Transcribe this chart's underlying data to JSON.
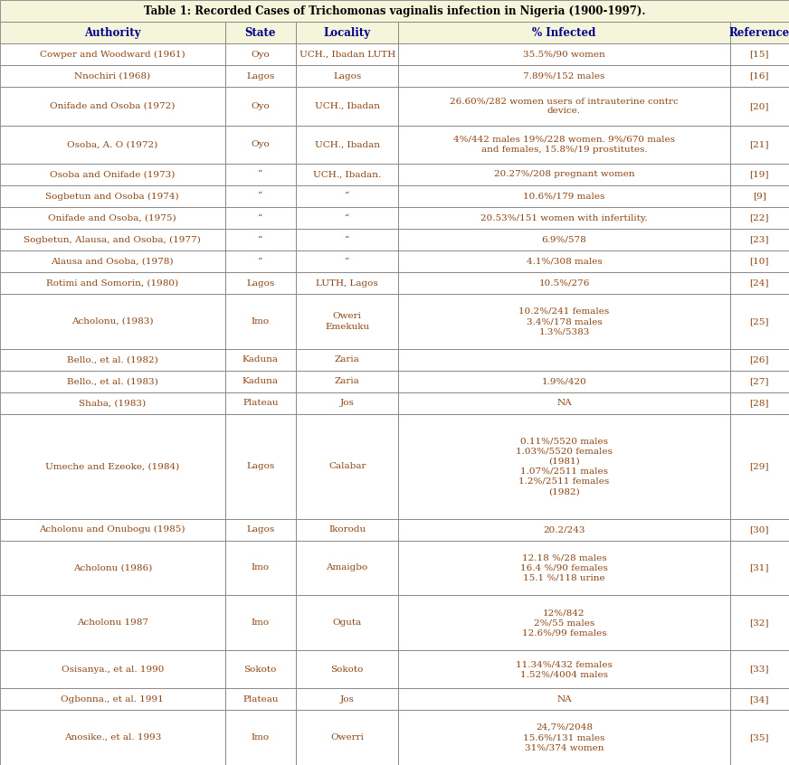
{
  "title": "Table 1: Recorded Cases of Trichomonas vaginalis infection in Nigeria (1900-1997).",
  "headers": [
    "Authority",
    "State",
    "Locality",
    "% Infected",
    "Reference"
  ],
  "col_starts": [
    0.0,
    0.285,
    0.375,
    0.505,
    0.925
  ],
  "col_ends": [
    0.285,
    0.375,
    0.505,
    0.925,
    1.0
  ],
  "header_bg": "#F5F5DC",
  "cell_bg": "#FFFFFF",
  "border_color": "#808080",
  "header_text_color": "#00008B",
  "cell_text_color": "#8B4513",
  "title_color": "#000000",
  "rows": [
    {
      "authority": "Cowper and Woodward (1961)",
      "state": "Oyo",
      "locality": "UCH., Ibadan LUTH",
      "infected": "35.5%/90 women",
      "reference": "[15]",
      "lines": 1
    },
    {
      "authority": "Nnochiri (1968)",
      "state": "Lagos",
      "locality": "Lagos",
      "infected": "7.89%/152 males",
      "reference": "[16]",
      "lines": 1
    },
    {
      "authority": "Onifade and Osoba (1972)",
      "state": "Oyo",
      "locality": "UCH., Ibadan",
      "infected": "26.60%/282 women users of intrauterine contrc\ndevice.",
      "reference": "[20]",
      "lines": 2
    },
    {
      "authority": "Osoba, A. O (1972)",
      "state": "Oyo",
      "locality": "UCH., Ibadan",
      "infected": "4%/442 males 19%/228 women. 9%/670 males\nand females, 15.8%/19 prostitutes.",
      "reference": "[21]",
      "lines": 2
    },
    {
      "authority": "Osoba and Onifade (1973)",
      "state": "“",
      "locality": "UCH., Ibadan.",
      "infected": "20.27%/208 pregnant women",
      "reference": "[19]",
      "lines": 1
    },
    {
      "authority": "Sogbetun and Osoba (1974)",
      "state": "“",
      "locality": "“",
      "infected": "10.6%/179 males",
      "reference": "[9]",
      "lines": 1
    },
    {
      "authority": "Onifade and Osoba, (1975)",
      "state": "“",
      "locality": "“",
      "infected": "20.53%/151 women with infertility.",
      "reference": "[22]",
      "lines": 1
    },
    {
      "authority": "Sogbetun, Alausa, and Osoba, (1977)",
      "state": "“",
      "locality": "“",
      "infected": "6.9%/578",
      "reference": "[23]",
      "lines": 1
    },
    {
      "authority": "Alausa and Osoba, (1978)",
      "state": "“",
      "locality": "“",
      "infected": "4.1%/308 males",
      "reference": "[10]",
      "lines": 1
    },
    {
      "authority": "Rotimi and Somorin, (1980)",
      "state": "Lagos",
      "locality": "LUTH, Lagos",
      "infected": "10.5%/276",
      "reference": "[24]",
      "lines": 1
    },
    {
      "authority": "Acholonu, (1983)",
      "state": "Imo",
      "locality": "Oweri\nEmekuku",
      "infected": "10.2%/241 females\n3.4%/178 males\n1.3%/5383",
      "reference": "[25]",
      "lines": 3
    },
    {
      "authority": "Bello., et al. (1982)",
      "state": "Kaduna",
      "locality": "Zaria",
      "infected": "",
      "reference": "[26]",
      "lines": 1
    },
    {
      "authority": "Bello., et al. (1983)",
      "state": "Kaduna",
      "locality": "Zaria",
      "infected": "1.9%/420",
      "reference": "[27]",
      "lines": 1
    },
    {
      "authority": "Shaba, (1983)",
      "state": "Plateau",
      "locality": "Jos",
      "infected": "NA",
      "reference": "[28]",
      "lines": 1
    },
    {
      "authority": "Umeche and Ezeoke, (1984)",
      "state": "Lagos",
      "locality": "Calabar",
      "infected": "0.11%/5520 males\n1.03%/5520 females\n(1981)\n1.07%/2511 males\n1.2%/2511 females\n(1982)",
      "reference": "[29]",
      "lines": 6
    },
    {
      "authority": "Acholonu and Onubogu (1985)",
      "state": "Lagos",
      "locality": "Ikorodu",
      "infected": "20.2/243",
      "reference": "[30]",
      "lines": 1
    },
    {
      "authority": "Acholonu (1986)",
      "state": "Imo",
      "locality": "Amaigbo",
      "infected": "12.18 %/28 males\n16.4 %/90 females\n15.1 %/118 urine",
      "reference": "[31]",
      "lines": 3
    },
    {
      "authority": "Acholonu 1987",
      "state": "Imo",
      "locality": "Oguta",
      "infected": "12%/842\n2%/55 males\n12.6%/99 females",
      "reference": "[32]",
      "lines": 3
    },
    {
      "authority": "Osisanya., et al. 1990",
      "state": "Sokoto",
      "locality": "Sokoto",
      "infected": "11.34%/432 females\n1.52%/4004 males",
      "reference": "[33]",
      "lines": 2
    },
    {
      "authority": "Ogbonna., et al. 1991",
      "state": "Plateau",
      "locality": "Jos",
      "infected": "NA",
      "reference": "[34]",
      "lines": 1
    },
    {
      "authority": "Anosike., et al. 1993",
      "state": "Imo",
      "locality": "Owerri",
      "infected": "24,7%/2048\n15.6%/131 males\n31%/374 women",
      "reference": "[35]",
      "lines": 3
    }
  ]
}
